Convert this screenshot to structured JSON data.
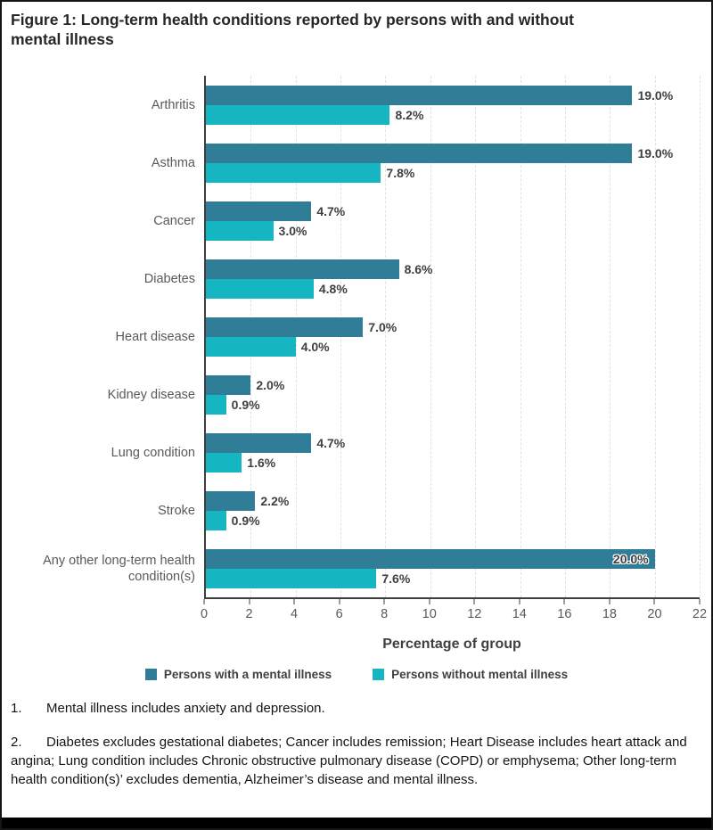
{
  "title": "Figure 1: Long-term health conditions reported by persons with and without mental illness",
  "chart_data": {
    "type": "bar",
    "orientation": "horizontal",
    "title": "Figure 1: Long-term health conditions reported by persons with and without mental illness",
    "categories": [
      "Arthritis",
      "Asthma",
      "Cancer",
      "Diabetes",
      "Heart disease",
      "Kidney disease",
      "Lung condition",
      "Stroke",
      "Any other long-term health condition(s)"
    ],
    "series": [
      {
        "name": "Persons with a mental illness",
        "color": "#2F7D97",
        "values": [
          19.0,
          19.0,
          4.7,
          8.6,
          7.0,
          2.0,
          4.7,
          2.2,
          20.0
        ],
        "labels": [
          "19.0%",
          "19.0%",
          "4.7%",
          "8.6%",
          "7.0%",
          "2.0%",
          "4.7%",
          "2.2%",
          "20.0%"
        ]
      },
      {
        "name": "Persons without mental illness",
        "color": "#15B6C2",
        "values": [
          8.2,
          7.8,
          3.0,
          4.8,
          4.0,
          0.9,
          1.6,
          0.9,
          7.6
        ],
        "labels": [
          "8.2%",
          "7.8%",
          "3.0%",
          "4.8%",
          "4.0%",
          "0.9%",
          "1.6%",
          "0.9%",
          "7.6%"
        ]
      }
    ],
    "xlabel": "Percentage of group",
    "xlim": [
      0,
      22
    ],
    "xticks": [
      0,
      2,
      4,
      6,
      8,
      10,
      12,
      14,
      16,
      18,
      20,
      22
    ],
    "grid": "vertical-dashed",
    "legend_position": "bottom"
  },
  "footnotes": [
    {
      "number": "1.",
      "text": "Mental illness includes anxiety and depression."
    },
    {
      "number": "2.",
      "text": "Diabetes excludes gestational diabetes; Cancer includes remission; Heart Disease includes heart attack and angina; Lung condition includes Chronic obstructive pulmonary disease (COPD) or emphysema; Other long-term health condition(s)’ excludes dementia, Alzheimer’s disease and mental illness."
    }
  ]
}
